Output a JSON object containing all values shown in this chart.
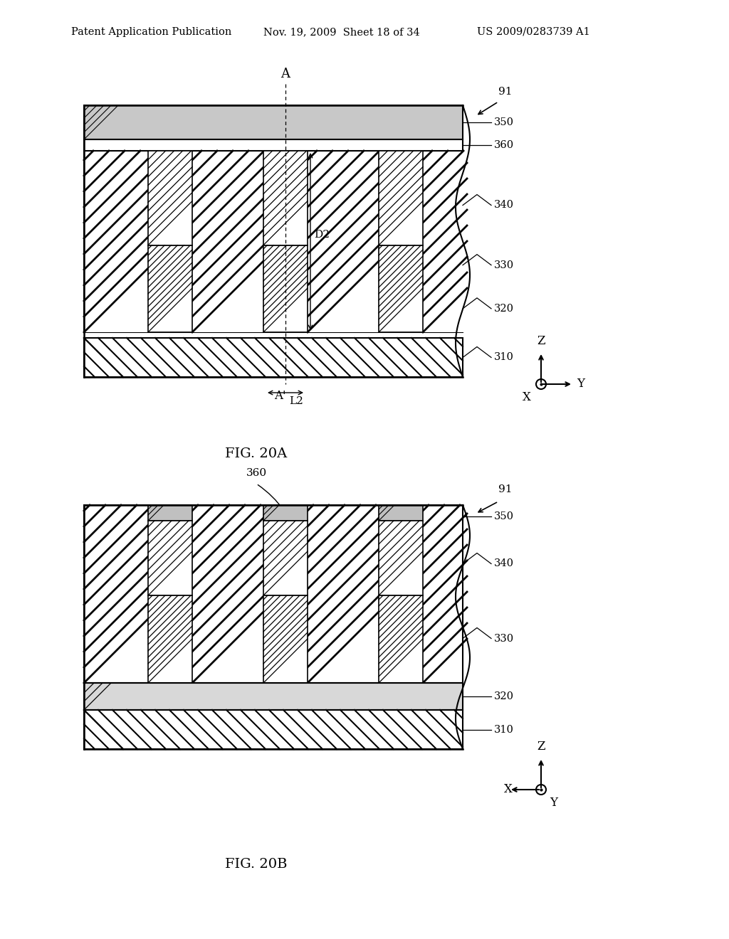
{
  "bg_color": "#ffffff",
  "header_text": "Patent Application Publication",
  "header_date": "Nov. 19, 2009  Sheet 18 of 34",
  "header_patent": "US 2009/0283739 A1",
  "fig_title_a": "FIG. 20A",
  "fig_title_b": "FIG. 20B"
}
